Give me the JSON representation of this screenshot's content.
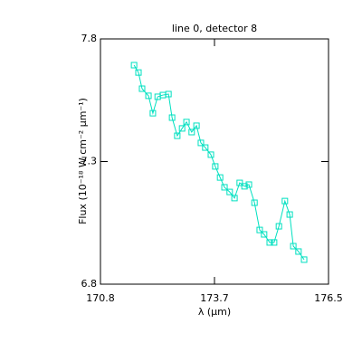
{
  "chart_data": {
    "type": "line",
    "title": "line 0, detector 8",
    "x_label": "λ (μm)",
    "y_label": "Flux (10⁻¹⁸ W cm⁻² μm⁻¹)",
    "xlim": [
      170.8,
      176.5
    ],
    "xticks": [
      170.8,
      {
        "value": 173.65,
        "label": "173.7"
      },
      176.5
    ],
    "ylim": [
      6.8,
      7.8
    ],
    "yticks": [
      6.8,
      7.3,
      7.8
    ],
    "series": [
      {
        "color": "#00e0c0",
        "x": [
          171.64,
          171.75,
          171.84,
          172.0,
          172.11,
          172.23,
          172.36,
          172.5,
          172.59,
          172.72,
          172.84,
          172.95,
          173.08,
          173.2,
          173.31,
          173.42,
          173.56,
          173.67,
          173.79,
          173.9,
          174.03,
          174.15,
          174.28,
          174.4,
          174.51,
          174.65,
          174.78,
          174.89,
          175.03,
          175.14,
          175.26,
          175.41,
          175.53,
          175.62,
          175.75,
          175.89
        ],
        "values": [
          7.693,
          7.663,
          7.597,
          7.568,
          7.497,
          7.564,
          7.571,
          7.575,
          7.479,
          7.405,
          7.435,
          7.461,
          7.42,
          7.446,
          7.376,
          7.357,
          7.328,
          7.28,
          7.235,
          7.195,
          7.176,
          7.151,
          7.213,
          7.199,
          7.206,
          7.132,
          7.021,
          7.003,
          6.97,
          6.97,
          7.036,
          7.139,
          7.084,
          6.955,
          6.933,
          6.9
        ]
      }
    ]
  }
}
